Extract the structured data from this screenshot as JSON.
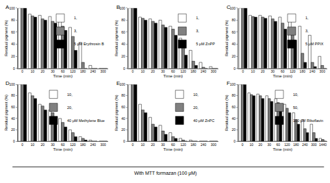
{
  "chart_data": [
    {
      "type": "bar",
      "title": "A",
      "x_label": "Time (min)",
      "y_label": "Residual pigment (%)",
      "categories": [
        "0",
        "10",
        "20",
        "30",
        "60",
        "120",
        "180",
        "240",
        "300"
      ],
      "series": [
        {
          "name": "1,",
          "color": "#ffffff",
          "values": [
            100,
            90,
            88,
            86,
            80,
            68,
            43,
            5,
            0
          ]
        },
        {
          "name": "3,",
          "color": "#808080",
          "values": [
            100,
            87,
            82,
            78,
            70,
            53,
            10,
            0,
            0
          ]
        },
        {
          "name": "5 μM Erythrosin B",
          "color": "#000000",
          "values": [
            100,
            85,
            80,
            75,
            63,
            30,
            0,
            0,
            0
          ]
        }
      ],
      "ylim": [
        0,
        100
      ],
      "yticks": [
        0,
        20,
        40,
        60,
        80,
        100
      ],
      "legend": "upper right"
    },
    {
      "type": "bar",
      "title": "B",
      "x_label": "Time (min)",
      "y_label": "Residual pigment (%)",
      "categories": [
        "0",
        "10",
        "20",
        "30",
        "60",
        "120",
        "180",
        "240",
        "300"
      ],
      "series": [
        {
          "name": "1,",
          "color": "#ffffff",
          "values": [
            100,
            85,
            82,
            80,
            70,
            50,
            30,
            10,
            3
          ]
        },
        {
          "name": "3,",
          "color": "#808080",
          "values": [
            100,
            83,
            78,
            72,
            65,
            38,
            12,
            2,
            0
          ]
        },
        {
          "name": "5 μM ZnPP",
          "color": "#000000",
          "values": [
            100,
            80,
            75,
            68,
            55,
            22,
            5,
            0,
            0
          ]
        }
      ],
      "ylim": [
        0,
        100
      ],
      "yticks": [
        0,
        20,
        40,
        60,
        80,
        100
      ],
      "legend": "upper right"
    },
    {
      "type": "bar",
      "title": "C",
      "x_label": "Time (min)",
      "y_label": "Residual pigment (%)",
      "categories": [
        "0",
        "10",
        "20",
        "30",
        "60",
        "120",
        "180",
        "240",
        "300"
      ],
      "series": [
        {
          "name": "1,",
          "color": "#ffffff",
          "values": [
            100,
            88,
            88,
            87,
            85,
            80,
            70,
            55,
            20
          ]
        },
        {
          "name": "3,",
          "color": "#808080",
          "values": [
            100,
            86,
            85,
            82,
            75,
            60,
            25,
            10,
            5
          ]
        },
        {
          "name": "5 μM PPIX",
          "color": "#000000",
          "values": [
            100,
            85,
            83,
            78,
            65,
            47,
            10,
            3,
            0
          ]
        }
      ],
      "ylim": [
        0,
        100
      ],
      "yticks": [
        0,
        20,
        40,
        60,
        80,
        100
      ],
      "legend": "upper right"
    },
    {
      "type": "bar",
      "title": "D",
      "x_label": "Time (min)",
      "y_label": "Residual pigment (%)",
      "categories": [
        "0",
        "10",
        "20",
        "30",
        "60",
        "120",
        "180",
        "240",
        "300"
      ],
      "series": [
        {
          "name": "10,",
          "color": "#ffffff",
          "values": [
            100,
            85,
            65,
            55,
            40,
            20,
            8,
            2,
            0
          ]
        },
        {
          "name": "20,",
          "color": "#808080",
          "values": [
            100,
            80,
            62,
            50,
            33,
            15,
            5,
            0,
            0
          ]
        },
        {
          "name": "40 μM Methylene Blue",
          "color": "#000000",
          "values": [
            100,
            75,
            55,
            40,
            25,
            8,
            2,
            0,
            0
          ]
        }
      ],
      "ylim": [
        0,
        100
      ],
      "yticks": [
        0,
        20,
        40,
        60,
        80,
        100
      ],
      "legend": "upper right"
    },
    {
      "type": "bar",
      "title": "E",
      "x_label": "Time (min)",
      "y_label": "Residual pigment (%)",
      "categories": [
        "0",
        "10",
        "20",
        "30",
        "60",
        "120",
        "180",
        "240",
        "300"
      ],
      "series": [
        {
          "name": "10,",
          "color": "#ffffff",
          "values": [
            100,
            65,
            42,
            28,
            15,
            5,
            2,
            0,
            0
          ]
        },
        {
          "name": "20,",
          "color": "#808080",
          "values": [
            100,
            55,
            30,
            18,
            8,
            2,
            0,
            0,
            0
          ]
        },
        {
          "name": "40 μM ZnPC",
          "color": "#000000",
          "values": [
            100,
            50,
            25,
            12,
            5,
            0,
            0,
            0,
            0
          ]
        }
      ],
      "ylim": [
        0,
        100
      ],
      "yticks": [
        0,
        20,
        40,
        60,
        80,
        100
      ],
      "legend": "upper right"
    },
    {
      "type": "bar",
      "title": "F",
      "x_label": "Time (min)",
      "y_label": "Residual pigment (%)",
      "categories": [
        "0",
        "10",
        "20",
        "30",
        "60",
        "120",
        "180",
        "240",
        "300",
        "1440"
      ],
      "series": [
        {
          "name": "10,",
          "color": "#ffffff",
          "values": [
            100,
            85,
            83,
            80,
            75,
            65,
            50,
            38,
            30,
            5
          ]
        },
        {
          "name": "50,",
          "color": "#808080",
          "values": [
            100,
            82,
            80,
            75,
            68,
            58,
            38,
            22,
            15,
            3
          ]
        },
        {
          "name": "100 μM Riboflavin",
          "color": "#000000",
          "values": [
            100,
            80,
            75,
            70,
            62,
            50,
            30,
            15,
            5,
            0
          ]
        }
      ],
      "ylim": [
        0,
        100
      ],
      "yticks": [
        0,
        20,
        40,
        60,
        80,
        100
      ],
      "legend": "upper right"
    }
  ],
  "annotation": "With MTT formazan (100 μM)"
}
